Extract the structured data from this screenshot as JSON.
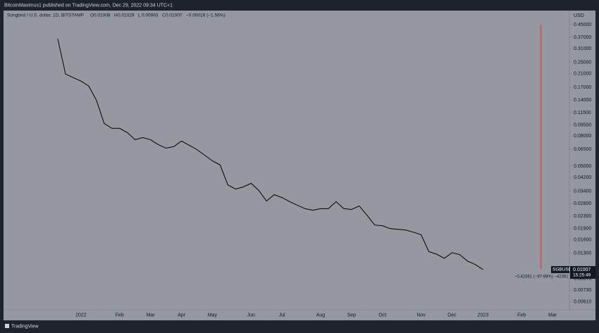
{
  "header": {
    "publisher": "BitcoinMaximus1 published on TradingView.com, Dec 29, 2022 09:34 UTC+1"
  },
  "chart_data": {
    "type": "line",
    "title": "Songbird / U.S. dollar, 1D, BITSTAMP",
    "ohlc": [
      {
        "label": "O",
        "value": 0.01008
      },
      {
        "label": "H",
        "value": 0.01029
      },
      {
        "label": "L",
        "value": 0.00993
      },
      {
        "label": "C",
        "value": 0.01007
      }
    ],
    "change": "−0.00016 (−1.56%)",
    "y_axis_label": "USD",
    "symbol": "SGBUSD",
    "countdown": "15:25:49",
    "measure_label": "−0.42361 (−97.69%) −42361",
    "color": "#000000",
    "log_scale": true,
    "grid": false,
    "categories": [
      null,
      null,
      null,
      "2022",
      null,
      null,
      null,
      null,
      "Feb",
      null,
      null,
      null,
      "Mar",
      null,
      null,
      null,
      "Apr",
      null,
      null,
      null,
      "May",
      null,
      null,
      null,
      null,
      "Jun",
      null,
      null,
      null,
      "Jul",
      null,
      null,
      null,
      null,
      "Aug",
      null,
      null,
      null,
      "Sep",
      null,
      null,
      null,
      "Oct",
      null,
      null,
      null,
      null,
      "Nov",
      null,
      null,
      null,
      "Dec",
      null,
      null,
      null,
      "2023",
      null,
      null,
      null,
      null,
      "Feb",
      null,
      null,
      null,
      "Mar",
      null
    ],
    "values": [
      0.361,
      0.209,
      0.198,
      0.1875,
      0.1737,
      0.1395,
      0.0972,
      0.0901,
      0.0901,
      0.0843,
      0.0756,
      0.0781,
      0.0756,
      0.07,
      0.0663,
      0.0678,
      0.074,
      0.0693,
      0.0648,
      0.0594,
      0.0544,
      0.051,
      0.0375,
      0.0351,
      0.0363,
      0.0384,
      0.0344,
      0.0292,
      0.0322,
      0.0308,
      0.0289,
      0.0273,
      0.0259,
      0.0253,
      0.0259,
      0.0259,
      0.0289,
      0.0259,
      0.0256,
      0.027,
      0.0234,
      0.0201,
      0.0199,
      0.019,
      0.0188,
      0.0186,
      0.018,
      0.0173,
      0.0133,
      0.0128,
      0.012,
      0.0131,
      0.0127,
      0.0115,
      0.0109,
      0.01007,
      null,
      null,
      null,
      null,
      null,
      null,
      null,
      null,
      null,
      null
    ],
    "ylim": [
      0.0054,
      0.56
    ],
    "yticks": [
      {
        "value": 0.45,
        "label": "0.45000"
      },
      {
        "value": 0.37,
        "label": "0.37000"
      },
      {
        "value": 0.31,
        "label": "0.31000"
      },
      {
        "value": 0.25,
        "label": "0.25000"
      },
      {
        "value": 0.21,
        "label": "0.21000"
      },
      {
        "value": 0.17,
        "label": "0.17000"
      },
      {
        "value": 0.14,
        "label": "0.14000"
      },
      {
        "value": 0.115,
        "label": "0.11500"
      },
      {
        "value": 0.095,
        "label": "0.09500"
      },
      {
        "value": 0.08,
        "label": "0.08000"
      },
      {
        "value": 0.065,
        "label": "0.06500"
      },
      {
        "value": 0.05,
        "label": "0.05000"
      },
      {
        "value": 0.042,
        "label": "0.04200"
      },
      {
        "value": 0.034,
        "label": "0.03400"
      },
      {
        "value": 0.028,
        "label": "0.02800"
      },
      {
        "value": 0.023,
        "label": "0.02300"
      },
      {
        "value": 0.019,
        "label": "0.01900"
      },
      {
        "value": 0.016,
        "label": "0.01600"
      },
      {
        "value": 0.013,
        "label": "0.01300"
      },
      {
        "value": 0.0087,
        "label": "0.00870"
      },
      {
        "value": 0.0073,
        "label": "0.00730"
      },
      {
        "value": 0.0061,
        "label": "0.00610"
      }
    ]
  },
  "footer": {
    "brand": "TradingView"
  }
}
